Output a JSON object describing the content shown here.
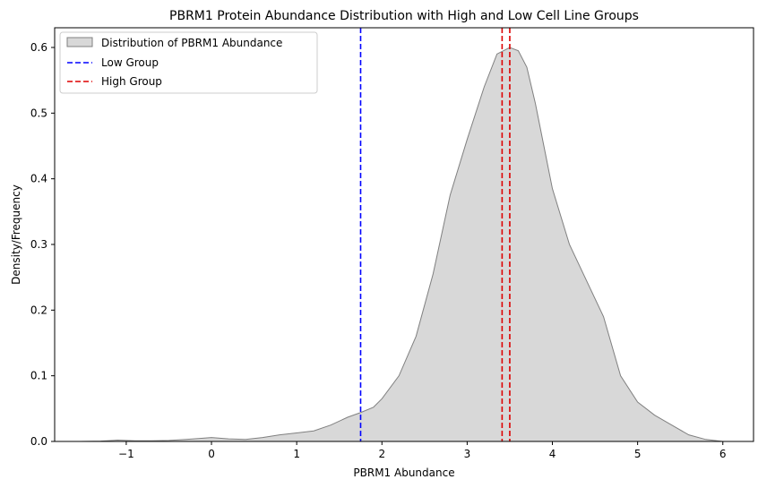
{
  "chart_data": {
    "type": "area",
    "title": "PBRM1 Protein Abundance Distribution with High and Low Cell Line Groups",
    "xlabel": "PBRM1 Abundance",
    "ylabel": "Density/Frequency",
    "xlim": [
      -1.84,
      6.36
    ],
    "ylim": [
      0,
      0.63
    ],
    "x_ticks": [
      -1,
      0,
      1,
      2,
      3,
      4,
      5,
      6
    ],
    "y_ticks": [
      0.0,
      0.1,
      0.2,
      0.3,
      0.4,
      0.5,
      0.6
    ],
    "x_tick_labels": [
      "−1",
      "0",
      "1",
      "2",
      "3",
      "4",
      "5",
      "6"
    ],
    "y_tick_labels": [
      "0.0",
      "0.1",
      "0.2",
      "0.3",
      "0.4",
      "0.5",
      "0.6"
    ],
    "grid": false,
    "legend_position": "top-left",
    "series": [
      {
        "name": "Distribution of PBRM1 Abundance",
        "kind": "kde-area",
        "fill_color": "#d8d8d8",
        "line_color": "#808080",
        "x": [
          -1.55,
          -1.3,
          -1.1,
          -0.9,
          -0.7,
          -0.5,
          -0.3,
          -0.1,
          0.0,
          0.2,
          0.4,
          0.6,
          0.8,
          1.0,
          1.2,
          1.4,
          1.6,
          1.75,
          1.9,
          2.0,
          2.2,
          2.4,
          2.6,
          2.8,
          3.0,
          3.2,
          3.35,
          3.5,
          3.6,
          3.7,
          3.8,
          3.9,
          4.0,
          4.2,
          4.4,
          4.6,
          4.8,
          5.0,
          5.2,
          5.4,
          5.6,
          5.8,
          6.0
        ],
        "y": [
          0.0,
          0.0005,
          0.002,
          0.001,
          0.001,
          0.0015,
          0.003,
          0.005,
          0.006,
          0.004,
          0.003,
          0.006,
          0.01,
          0.013,
          0.016,
          0.025,
          0.037,
          0.044,
          0.052,
          0.065,
          0.1,
          0.16,
          0.255,
          0.375,
          0.46,
          0.54,
          0.59,
          0.6,
          0.595,
          0.57,
          0.515,
          0.45,
          0.385,
          0.3,
          0.245,
          0.19,
          0.1,
          0.06,
          0.04,
          0.025,
          0.01,
          0.003,
          0.0
        ]
      },
      {
        "name": "Low Group",
        "kind": "vline",
        "color": "#0000ff",
        "x": [
          1.75
        ]
      },
      {
        "name": "High Group",
        "kind": "vline",
        "color": "#dd0000",
        "x": [
          3.41,
          3.5
        ]
      }
    ]
  }
}
